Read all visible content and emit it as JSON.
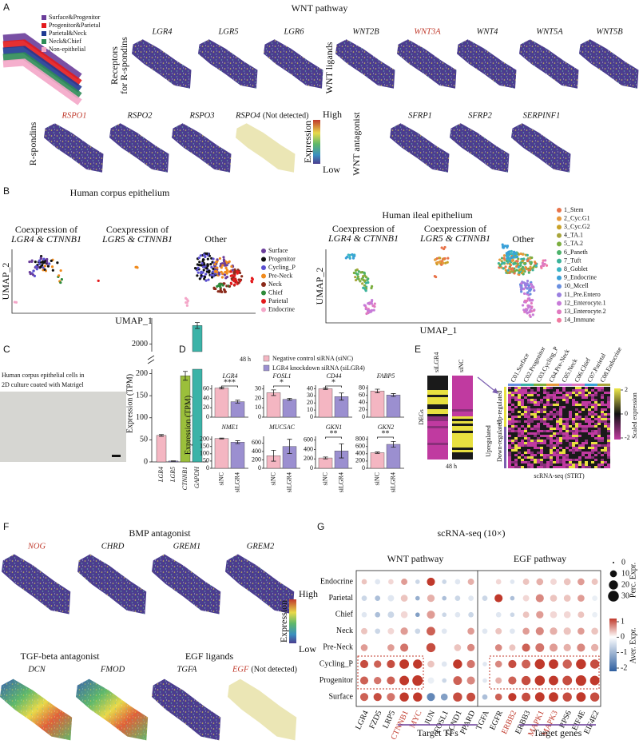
{
  "figure": {
    "A": {
      "label": "A",
      "title": "WNT pathway",
      "legend": [
        {
          "name": "Surface&Progenitor",
          "color": "#6a3d9a"
        },
        {
          "name": "Progenitor&Parietal",
          "color": "#e31a1c"
        },
        {
          "name": "Parietal&Neck",
          "color": "#1f3a93"
        },
        {
          "name": "Neck&Chief",
          "color": "#2e8b57"
        },
        {
          "name": "Non-epithelial",
          "color": "#f4a6c8"
        }
      ],
      "groups": [
        {
          "label": [
            "Receptors",
            "for R-spondins"
          ],
          "genes": [
            {
              "name": "LGR4"
            },
            {
              "name": "LGR5"
            },
            {
              "name": "LGR6"
            }
          ]
        },
        {
          "label": [
            "WNT ligands"
          ],
          "genes": [
            {
              "name": "WNT2B"
            },
            {
              "name": "WNT3A",
              "highlight": true
            },
            {
              "name": "WNT4"
            },
            {
              "name": "WNT5A"
            },
            {
              "name": "WNT5B"
            }
          ]
        },
        {
          "label": [
            "R-spondins"
          ],
          "genes": [
            {
              "name": "RSPO1",
              "highlight": true
            },
            {
              "name": "RSPO2"
            },
            {
              "name": "RSPO3"
            },
            {
              "name": "RSPO4",
              "note": "(Not detected)",
              "detected": false
            }
          ]
        },
        {
          "label": [
            "WNT antagonist"
          ],
          "genes": [
            {
              "name": "SFRP1"
            },
            {
              "name": "SFRP2"
            },
            {
              "name": "SERPINF1"
            }
          ]
        }
      ],
      "colorbar": {
        "high": "High",
        "title": "Expression",
        "low": "Low"
      }
    },
    "B": {
      "label": "B",
      "left": {
        "title": "Human corpus epithelium",
        "subtitles": [
          {
            "line1": "Coexpression of",
            "line2": "LGR4 & CTNNB1"
          },
          {
            "line1": "Coexpression of",
            "line2": "LGR5 & CTNNB1"
          }
        ],
        "other": "Other",
        "xlabel": "UMAP_1",
        "ylabel": "UMAP_2",
        "legend": [
          {
            "name": "Surface",
            "color": "#6a3d9a"
          },
          {
            "name": "Progenitor",
            "color": "#111111"
          },
          {
            "name": "Cycling_P",
            "color": "#5a4fcf"
          },
          {
            "name": "Pre-Neck",
            "color": "#f08a1c"
          },
          {
            "name": "Neck",
            "color": "#8b2a1a"
          },
          {
            "name": "Chief",
            "color": "#2e8b3a"
          },
          {
            "name": "Parietal",
            "color": "#e31a1c"
          },
          {
            "name": "Endocrine",
            "color": "#f4a6c8"
          }
        ]
      },
      "right": {
        "title": "Human ileal epithelium",
        "subtitles": [
          {
            "line1": "Coexpression of",
            "line2": "LGR4 & CTNNB1"
          },
          {
            "line1": "Coexpression of",
            "line2": "LGR5 & CTNNB1"
          }
        ],
        "other": "Other",
        "xlabel": "UMAP_1",
        "ylabel": "UMAP_2",
        "legend": [
          {
            "name": "1_Stem",
            "color": "#e8734a"
          },
          {
            "name": "2_Cyc.G1",
            "color": "#e89a3c"
          },
          {
            "name": "3_Cyc.G2",
            "color": "#c9a227"
          },
          {
            "name": "4_TA.1",
            "color": "#a8a53a"
          },
          {
            "name": "5_TA.2",
            "color": "#7cae3f"
          },
          {
            "name": "6_Paneth",
            "color": "#4db36b"
          },
          {
            "name": "7_Tuft",
            "color": "#3cb39a"
          },
          {
            "name": "8_Goblet",
            "color": "#3ab5c4"
          },
          {
            "name": "9_Endocrine",
            "color": "#3aa0d8"
          },
          {
            "name": "10_Mcell",
            "color": "#6a8fe0"
          },
          {
            "name": "11_Pre.Entero",
            "color": "#9a7fe0"
          },
          {
            "name": "12_Enterocyte.1",
            "color": "#c77bd8"
          },
          {
            "name": "13_Enterocyte.2",
            "color": "#e07ac0"
          },
          {
            "name": "14_Immune",
            "color": "#f07aa0"
          }
        ]
      }
    },
    "C": {
      "label": "C",
      "caption": [
        "Human corpus epithelial cells in",
        "2D culture coated with Matrigel"
      ],
      "chart": {
        "type": "bar",
        "ylabel": "Expression (TPM)",
        "categories": [
          "LGR4",
          "LGR5",
          "CTNNB1",
          "GAPDH"
        ],
        "values": [
          60,
          2,
          195,
          2250
        ],
        "errors": [
          2,
          0.5,
          10,
          40
        ],
        "colors": [
          "#f4b6c2",
          "#9b8fd0",
          "#9bbf3b",
          "#3bb3a8"
        ],
        "segments": [
          {
            "ylim": [
              0,
              210
            ],
            "yticks": [
              0,
              50,
              100,
              150,
              200
            ]
          },
          {
            "ylim": [
              1900,
              2350
            ],
            "yticks": [
              2000
            ]
          }
        ]
      }
    },
    "D": {
      "label": "D",
      "time": "48 h",
      "legend": [
        {
          "name": "Negative control siRNA (siNC)",
          "color": "#f4b6c2"
        },
        {
          "name": "LGR4 knockdown siRNA (siLGR4)",
          "color": "#9b8fd0"
        }
      ],
      "ylabel": "Expression (TPM)",
      "categories": [
        "siNC",
        "siLGR4"
      ],
      "charts": [
        {
          "type": "bar",
          "title": "LGR4",
          "ylim": [
            0,
            68
          ],
          "yticks": [
            0,
            20,
            40,
            60
          ],
          "values": [
            62,
            33
          ],
          "errors": [
            2,
            3
          ],
          "significance": "***"
        },
        {
          "type": "bar",
          "title": "FOSL1",
          "ylim": [
            0,
            34
          ],
          "yticks": [
            0,
            10,
            20,
            30
          ],
          "values": [
            26,
            19
          ],
          "errors": [
            3,
            1
          ],
          "significance": "*"
        },
        {
          "type": "bar",
          "title": "CD44",
          "ylim": [
            0,
            45
          ],
          "yticks": [
            0,
            10,
            20,
            30,
            40
          ],
          "values": [
            40,
            29
          ],
          "errors": [
            1,
            5
          ],
          "significance": "*"
        },
        {
          "type": "bar",
          "title": "FABP5",
          "ylim": [
            0,
            88
          ],
          "yticks": [
            0,
            20,
            40,
            60,
            80
          ],
          "values": [
            72,
            61
          ],
          "errors": [
            5,
            4
          ]
        },
        {
          "type": "bar",
          "title": "NME1",
          "ylim": [
            0,
            220
          ],
          "yticks": [
            0,
            50,
            100,
            150,
            200
          ],
          "values": [
            205,
            180
          ],
          "errors": [
            3,
            10
          ]
        },
        {
          "type": "bar",
          "title": "MUC5AC",
          "ylim": [
            0,
            760
          ],
          "yticks": [
            0,
            200,
            400,
            600
          ],
          "values": [
            300,
            520
          ],
          "errors": [
            130,
            170
          ]
        },
        {
          "type": "bar",
          "title": "GKN1",
          "ylim": [
            0,
            680
          ],
          "yticks": [
            0,
            200,
            400,
            600
          ],
          "values": [
            220,
            370
          ],
          "errors": [
            20,
            150
          ],
          "significance": "**"
        },
        {
          "type": "bar",
          "title": "GKN2",
          "ylim": [
            0,
            880
          ],
          "yticks": [
            0,
            200,
            400,
            600,
            800
          ],
          "values": [
            430,
            660
          ],
          "errors": [
            20,
            80
          ],
          "significance": "**"
        }
      ]
    },
    "E": {
      "label": "E",
      "columns": [
        "siLGR4",
        "siNC"
      ],
      "ylabel": "DEGs",
      "time": "48 h",
      "up": "Up-regulated",
      "down": "Down-regulated",
      "side": "Upregulated",
      "clusters": [
        "C01.Surface",
        "C02.Progenitor",
        "C03.Cycling_P",
        "C04.Pre-Neck",
        "C05.Neck",
        "C06.Chief",
        "C07.Parietal",
        "C08.Endocrine"
      ],
      "xlabel": "scRNA-seq (STRT)",
      "colorbar": {
        "title": "Scaled expression",
        "ticks": [
          2,
          0,
          -2
        ]
      }
    },
    "F": {
      "label": "F",
      "groups": [
        {
          "title": "BMP antagonist",
          "genes": [
            {
              "name": "NOG",
              "highlight": true
            },
            {
              "name": "CHRD"
            },
            {
              "name": "GREM1"
            },
            {
              "name": "GREM2"
            }
          ]
        },
        {
          "title": "TGF-beta antagonist",
          "genes": [
            {
              "name": "DCN",
              "pattern": "high"
            },
            {
              "name": "FMOD",
              "pattern": "high"
            }
          ]
        },
        {
          "title": "EGF ligands",
          "genes": [
            {
              "name": "TGFA"
            },
            {
              "name": "EGF",
              "highlight": true,
              "note": "(Not detected)",
              "detected": false
            }
          ]
        }
      ],
      "colorbar": {
        "high": "High",
        "title": "Expression",
        "low": "Low"
      }
    },
    "G": {
      "label": "G",
      "title": "scRNA-seq (10×)",
      "rows": [
        "Endocrine",
        "Parietal",
        "Chief",
        "Neck",
        "Pre-Neck",
        "Cycling_P",
        "Progenitor",
        "Surface"
      ],
      "pathways": [
        {
          "name": "WNT pathway",
          "target": "Target TFs",
          "genes": [
            {
              "name": "LGR4"
            },
            {
              "name": "FZD5"
            },
            {
              "name": "LRP5"
            },
            {
              "name": "CTNNB1",
              "highlight": true
            },
            {
              "name": "MYC",
              "highlight": true
            },
            {
              "name": "JUN"
            },
            {
              "name": "FOSL1"
            },
            {
              "name": "CCND1"
            },
            {
              "name": "PPARD"
            }
          ]
        },
        {
          "name": "EGF pathway",
          "target": "Target genes",
          "genes": [
            {
              "name": "TGFA"
            },
            {
              "name": "EGFR"
            },
            {
              "name": "ERBB2",
              "highlight": true
            },
            {
              "name": "ERBB3"
            },
            {
              "name": "MAPK1",
              "highlight": true
            },
            {
              "name": "MAPK3",
              "highlight": true
            },
            {
              "name": "RPS6"
            },
            {
              "name": "EIF4E"
            },
            {
              "name": "EIF4E2"
            }
          ]
        }
      ],
      "expr": [
        [
          0.3,
          -0.3,
          0.2,
          0.5,
          -0.5,
          1.2,
          -0.5,
          -0.3,
          0.4,
          0,
          0.2,
          -0.3,
          0.3,
          0.4,
          0.2,
          0.3,
          0.5,
          0.3
        ],
        [
          -0.5,
          -0.8,
          -0.3,
          0.3,
          -1,
          0.4,
          -0.8,
          -0.5,
          -0.3,
          -0.5,
          1.1,
          -0.8,
          0.2,
          0.6,
          0.3,
          0.3,
          0.5,
          -0.2
        ],
        [
          -0.3,
          -0.8,
          -0.5,
          0.2,
          -1.2,
          0.5,
          -0.5,
          -0.3,
          -0.5,
          0,
          -0.3,
          -0.5,
          0.3,
          0.5,
          0.2,
          0.2,
          0.3,
          -0.2
        ],
        [
          0.3,
          -0.5,
          0.2,
          0.5,
          -0.5,
          0.8,
          -0.3,
          0,
          0.5,
          -0.3,
          0.3,
          -0.3,
          0.5,
          0.6,
          0.4,
          0.3,
          0.5,
          0.3
        ],
        [
          0.5,
          0,
          0.5,
          0.7,
          0,
          0.9,
          0,
          0.3,
          0.6,
          0,
          0.6,
          0.3,
          0.8,
          0.7,
          0.5,
          0.4,
          0.6,
          0.4
        ],
        [
          0.9,
          0.8,
          0.9,
          1.1,
          1,
          0.3,
          -0.3,
          1,
          0.7,
          -0.3,
          0.6,
          0.9,
          0.8,
          1.1,
          1.1,
          0.8,
          1,
          0.9
        ],
        [
          0.8,
          0.7,
          0.8,
          1,
          1.2,
          -0.2,
          -0.5,
          0.8,
          0.6,
          -0.3,
          0.4,
          0.8,
          0.9,
          1.1,
          1,
          0.9,
          1.1,
          1
        ],
        [
          0.8,
          0.9,
          0.7,
          1,
          1.1,
          -1.5,
          -1.2,
          0.9,
          0.9,
          -0.8,
          0.8,
          1,
          0.9,
          1,
          1,
          0.9,
          1.1,
          0.9
        ]
      ],
      "pct": [
        [
          5,
          5,
          5,
          8,
          3,
          15,
          3,
          5,
          8,
          3,
          5,
          3,
          8,
          10,
          8,
          10,
          10,
          8
        ],
        [
          5,
          5,
          8,
          10,
          3,
          12,
          3,
          5,
          5,
          5,
          15,
          3,
          8,
          15,
          10,
          10,
          10,
          5
        ],
        [
          5,
          5,
          8,
          10,
          3,
          15,
          3,
          5,
          5,
          3,
          5,
          3,
          8,
          12,
          10,
          10,
          8,
          5
        ],
        [
          8,
          5,
          8,
          12,
          5,
          18,
          5,
          8,
          10,
          5,
          8,
          5,
          10,
          15,
          12,
          12,
          10,
          10
        ],
        [
          10,
          8,
          10,
          15,
          8,
          20,
          8,
          10,
          12,
          5,
          10,
          8,
          15,
          18,
          15,
          12,
          15,
          12
        ],
        [
          15,
          12,
          15,
          22,
          20,
          10,
          5,
          20,
          15,
          3,
          10,
          15,
          18,
          25,
          22,
          20,
          25,
          20
        ],
        [
          15,
          12,
          15,
          22,
          28,
          8,
          3,
          18,
          15,
          3,
          8,
          15,
          20,
          25,
          22,
          22,
          28,
          22
        ],
        [
          15,
          15,
          15,
          20,
          20,
          15,
          10,
          20,
          18,
          5,
          10,
          15,
          18,
          22,
          22,
          20,
          22,
          20
        ]
      ],
      "size_legend": {
        "title": "Perc. Expr.",
        "ticks": [
          0,
          10,
          20,
          30
        ]
      },
      "color_legend": {
        "title": "Aver. Expr.",
        "ticks": [
          1,
          0,
          -1,
          -2
        ]
      }
    }
  }
}
